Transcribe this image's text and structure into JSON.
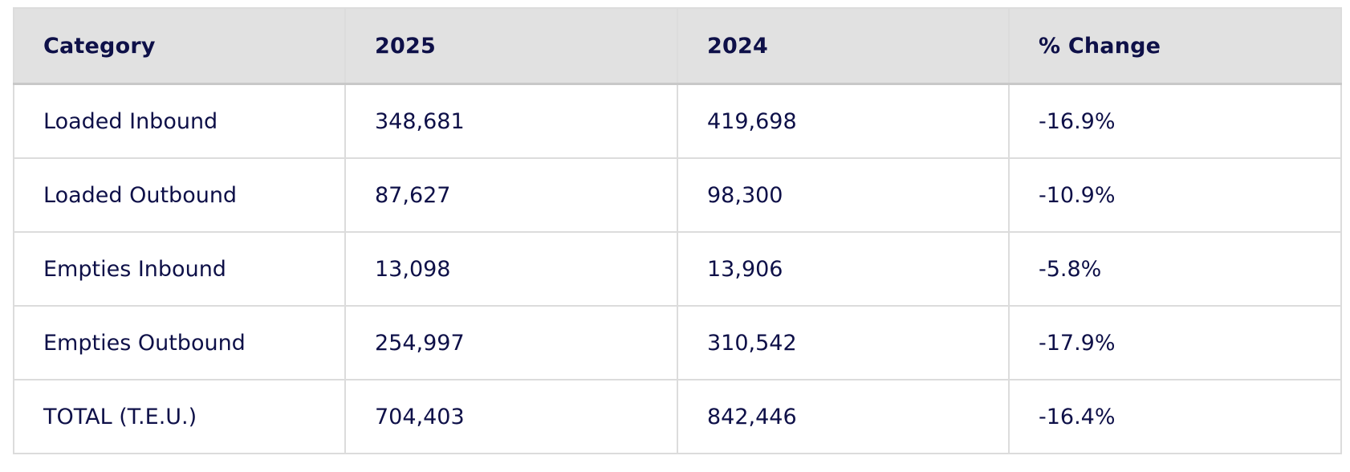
{
  "table": {
    "headers": [
      "Category",
      "2025",
      "2024",
      "% Change"
    ],
    "rows": [
      [
        "Loaded Inbound",
        "348,681",
        "419,698",
        "-16.9%"
      ],
      [
        "Loaded Outbound",
        "87,627",
        "98,300",
        "-10.9%"
      ],
      [
        "Empties Inbound",
        "13,098",
        "13,906",
        "-5.8%"
      ],
      [
        "Empties Outbound",
        "254,997",
        "310,542",
        "-17.9%"
      ],
      [
        "TOTAL (T.E.U.)",
        "704,403",
        "842,446",
        "-16.4%"
      ]
    ]
  },
  "colors": {
    "text": "#0e1048",
    "header_background": "#e1e1e1",
    "border": "#dcdcdc"
  }
}
